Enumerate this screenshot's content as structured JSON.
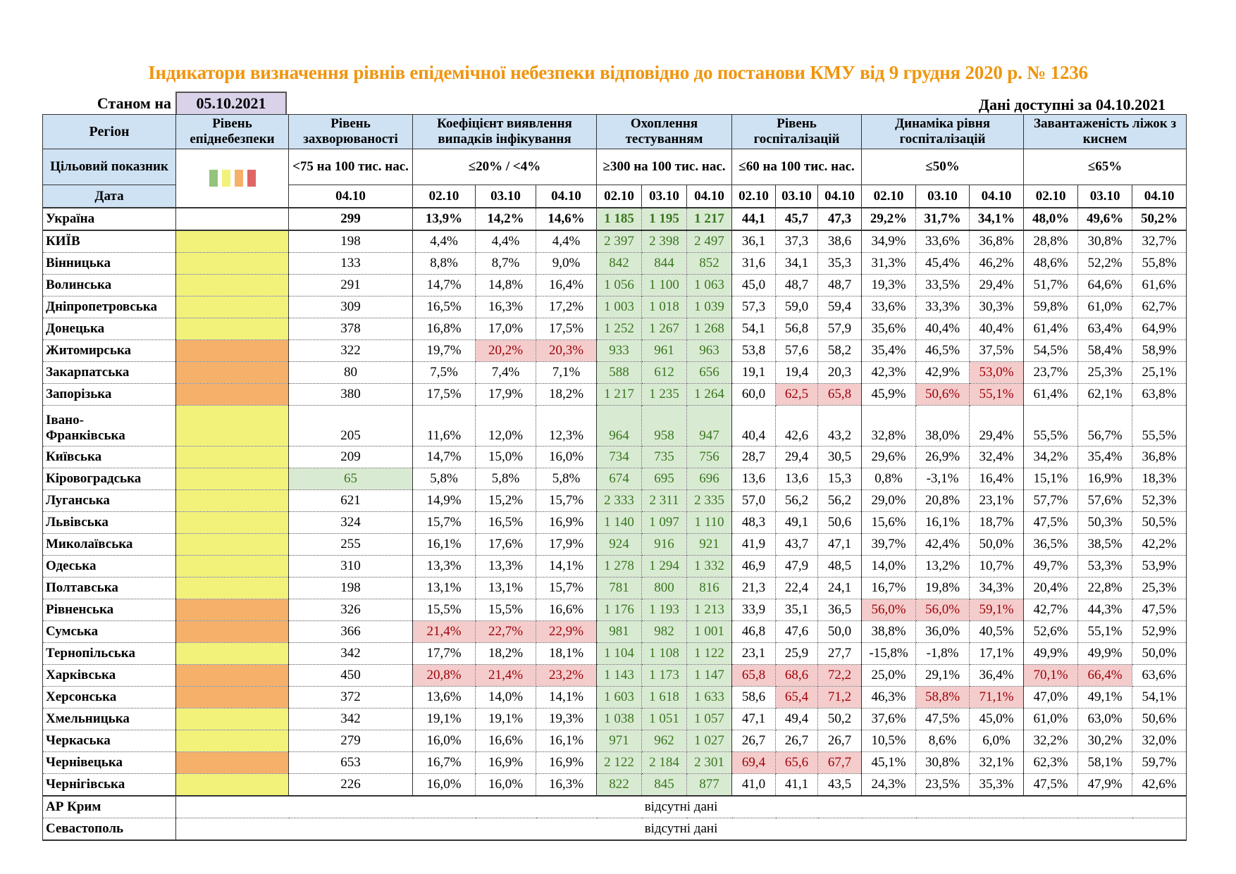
{
  "title": "Індикатори визначення рівнів епідемічної небезпеки відповідно до постанови КМУ від 9 грудня 2020 р. № 1236",
  "as_of_label": "Станом на",
  "as_of_date": "05.10.2021",
  "available_label": "Дані доступні за  04.10.2021",
  "colors": {
    "green": "#93c47d",
    "yellow": "#f2f27a",
    "orange": "#f5b06a",
    "red": "#e06666",
    "title": "#f0950e",
    "header": "#cfe2f3",
    "ok_bg": "#d9ead3",
    "bad_bg": "#f4cccc"
  },
  "headers": {
    "region": "Регіон",
    "level": "Рівень епіднебезпеки",
    "rate": "Рівень захворюваності",
    "coef": "Коефіцієнт виявлення випадків інфікування",
    "test": "Охоплення тестуванням",
    "hosp": "Рівень госпіталізацій",
    "dyn": "Динаміка рівня госпіталізацій",
    "beds": "Завантаженість ліжок з киснем"
  },
  "targets": {
    "label": "Цільовий показник",
    "legend": [
      "green",
      "yellow",
      "orange",
      "red"
    ],
    "rate": "<75 на 100 тис. нас.",
    "coef": "≤20% / <4%",
    "test": "≥300 на 100 тис. нас.",
    "hosp": "≤60 на 100 тис. нас.",
    "dyn": "≤50%",
    "beds": "≤65%"
  },
  "dates": {
    "label": "Дата",
    "rate": "04.10",
    "group": [
      "02.10",
      "03.10",
      "04.10"
    ]
  },
  "rows": [
    {
      "name": "Україна",
      "level": "",
      "rate": "299",
      "coef": [
        "13,9%",
        "14,2%",
        "14,6%"
      ],
      "test": [
        "1 185",
        "1 195",
        "1 217"
      ],
      "hosp": [
        "44,1",
        "45,7",
        "47,3"
      ],
      "dyn": [
        "29,2%",
        "31,7%",
        "34,1%"
      ],
      "beds": [
        "48,0%",
        "49,6%",
        "50,2%"
      ]
    },
    {
      "name": "КИЇВ",
      "level": "yellow",
      "rate": "198",
      "coef": [
        "4,4%",
        "4,4%",
        "4,4%"
      ],
      "test": [
        "2 397",
        "2 398",
        "2 497"
      ],
      "hosp": [
        "36,1",
        "37,3",
        "38,6"
      ],
      "dyn": [
        "34,9%",
        "33,6%",
        "36,8%"
      ],
      "beds": [
        "28,8%",
        "30,8%",
        "32,7%"
      ]
    },
    {
      "name": "Вінницька",
      "level": "yellow",
      "rate": "133",
      "coef": [
        "8,8%",
        "8,7%",
        "9,0%"
      ],
      "test": [
        "842",
        "844",
        "852"
      ],
      "hosp": [
        "31,6",
        "34,1",
        "35,3"
      ],
      "dyn": [
        "31,3%",
        "45,4%",
        "46,2%"
      ],
      "beds": [
        "48,6%",
        "52,2%",
        "55,8%"
      ]
    },
    {
      "name": "Волинська",
      "level": "yellow",
      "rate": "291",
      "coef": [
        "14,7%",
        "14,8%",
        "16,4%"
      ],
      "test": [
        "1 056",
        "1 100",
        "1 063"
      ],
      "hosp": [
        "45,0",
        "48,7",
        "48,7"
      ],
      "dyn": [
        "19,3%",
        "33,5%",
        "29,4%"
      ],
      "beds": [
        "51,7%",
        "64,6%",
        "61,6%"
      ]
    },
    {
      "name": "Дніпропетровська",
      "level": "yellow",
      "rate": "309",
      "coef": [
        "16,5%",
        "16,3%",
        "17,2%"
      ],
      "test": [
        "1 003",
        "1 018",
        "1 039"
      ],
      "hosp": [
        "57,3",
        "59,0",
        "59,4"
      ],
      "dyn": [
        "33,6%",
        "33,3%",
        "30,3%"
      ],
      "beds": [
        "59,8%",
        "61,0%",
        "62,7%"
      ]
    },
    {
      "name": "Донецька",
      "level": "yellow",
      "rate": "378",
      "coef": [
        "16,8%",
        "17,0%",
        "17,5%"
      ],
      "test": [
        "1 252",
        "1 267",
        "1 268"
      ],
      "hosp": [
        "54,1",
        "56,8",
        "57,9"
      ],
      "dyn": [
        "35,6%",
        "40,4%",
        "40,4%"
      ],
      "beds": [
        "61,4%",
        "63,4%",
        "64,9%"
      ]
    },
    {
      "name": "Житомирська",
      "level": "orange",
      "rate": "322",
      "coef": [
        "19,7%",
        "20,2%",
        "20,3%"
      ],
      "test": [
        "933",
        "961",
        "963"
      ],
      "hosp": [
        "53,8",
        "57,6",
        "58,2"
      ],
      "dyn": [
        "35,4%",
        "46,5%",
        "37,5%"
      ],
      "beds": [
        "54,5%",
        "58,4%",
        "58,9%"
      ]
    },
    {
      "name": "Закарпатська",
      "level": "orange",
      "rate": "80",
      "coef": [
        "7,5%",
        "7,4%",
        "7,1%"
      ],
      "test": [
        "588",
        "612",
        "656"
      ],
      "hosp": [
        "19,1",
        "19,4",
        "20,3"
      ],
      "dyn": [
        "42,3%",
        "42,9%",
        "53,0%"
      ],
      "beds": [
        "23,7%",
        "25,3%",
        "25,1%"
      ]
    },
    {
      "name": "Запорізька",
      "level": "orange",
      "rate": "380",
      "coef": [
        "17,5%",
        "17,9%",
        "18,2%"
      ],
      "test": [
        "1 217",
        "1 235",
        "1 264"
      ],
      "hosp": [
        "60,0",
        "62,5",
        "65,8"
      ],
      "dyn": [
        "45,9%",
        "50,6%",
        "55,1%"
      ],
      "beds": [
        "61,4%",
        "62,1%",
        "63,8%"
      ]
    },
    {
      "name": "Івано-Франківська",
      "level": "yellow",
      "rate": "205",
      "coef": [
        "11,6%",
        "12,0%",
        "12,3%"
      ],
      "test": [
        "964",
        "958",
        "947"
      ],
      "hosp": [
        "40,4",
        "42,6",
        "43,2"
      ],
      "dyn": [
        "32,8%",
        "38,0%",
        "29,4%"
      ],
      "beds": [
        "55,5%",
        "56,7%",
        "55,5%"
      ]
    },
    {
      "name": "Київська",
      "level": "yellow",
      "rate": "209",
      "coef": [
        "14,7%",
        "15,0%",
        "16,0%"
      ],
      "test": [
        "734",
        "735",
        "756"
      ],
      "hosp": [
        "28,7",
        "29,4",
        "30,5"
      ],
      "dyn": [
        "29,6%",
        "26,9%",
        "32,4%"
      ],
      "beds": [
        "34,2%",
        "35,4%",
        "36,8%"
      ]
    },
    {
      "name": "Кіровоградська",
      "level": "yellow",
      "rate": "65",
      "coef": [
        "5,8%",
        "5,8%",
        "5,8%"
      ],
      "test": [
        "674",
        "695",
        "696"
      ],
      "hosp": [
        "13,6",
        "13,6",
        "15,3"
      ],
      "dyn": [
        "0,8%",
        "-3,1%",
        "16,4%"
      ],
      "beds": [
        "15,1%",
        "16,9%",
        "18,3%"
      ]
    },
    {
      "name": "Луганська",
      "level": "yellow",
      "rate": "621",
      "coef": [
        "14,9%",
        "15,2%",
        "15,7%"
      ],
      "test": [
        "2 333",
        "2 311",
        "2 335"
      ],
      "hosp": [
        "57,0",
        "56,2",
        "56,2"
      ],
      "dyn": [
        "29,0%",
        "20,8%",
        "23,1%"
      ],
      "beds": [
        "57,7%",
        "57,6%",
        "52,3%"
      ]
    },
    {
      "name": "Львівська",
      "level": "yellow",
      "rate": "324",
      "coef": [
        "15,7%",
        "16,5%",
        "16,9%"
      ],
      "test": [
        "1 140",
        "1 097",
        "1 110"
      ],
      "hosp": [
        "48,3",
        "49,1",
        "50,6"
      ],
      "dyn": [
        "15,6%",
        "16,1%",
        "18,7%"
      ],
      "beds": [
        "47,5%",
        "50,3%",
        "50,5%"
      ]
    },
    {
      "name": "Миколаївська",
      "level": "yellow",
      "rate": "255",
      "coef": [
        "16,1%",
        "17,6%",
        "17,9%"
      ],
      "test": [
        "924",
        "916",
        "921"
      ],
      "hosp": [
        "41,9",
        "43,7",
        "47,1"
      ],
      "dyn": [
        "39,7%",
        "42,4%",
        "50,0%"
      ],
      "beds": [
        "36,5%",
        "38,5%",
        "42,2%"
      ]
    },
    {
      "name": "Одеська",
      "level": "yellow",
      "rate": "310",
      "coef": [
        "13,3%",
        "13,3%",
        "14,1%"
      ],
      "test": [
        "1 278",
        "1 294",
        "1 332"
      ],
      "hosp": [
        "46,9",
        "47,9",
        "48,5"
      ],
      "dyn": [
        "14,0%",
        "13,2%",
        "10,7%"
      ],
      "beds": [
        "49,7%",
        "53,3%",
        "53,9%"
      ]
    },
    {
      "name": "Полтавська",
      "level": "yellow",
      "rate": "198",
      "coef": [
        "13,1%",
        "13,1%",
        "15,7%"
      ],
      "test": [
        "781",
        "800",
        "816"
      ],
      "hosp": [
        "21,3",
        "22,4",
        "24,1"
      ],
      "dyn": [
        "16,7%",
        "19,8%",
        "34,3%"
      ],
      "beds": [
        "20,4%",
        "22,8%",
        "25,3%"
      ]
    },
    {
      "name": "Рівненська",
      "level": "orange",
      "rate": "326",
      "coef": [
        "15,5%",
        "15,5%",
        "16,6%"
      ],
      "test": [
        "1 176",
        "1 193",
        "1 213"
      ],
      "hosp": [
        "33,9",
        "35,1",
        "36,5"
      ],
      "dyn": [
        "56,0%",
        "56,0%",
        "59,1%"
      ],
      "beds": [
        "42,7%",
        "44,3%",
        "47,5%"
      ]
    },
    {
      "name": "Сумська",
      "level": "orange",
      "rate": "366",
      "coef": [
        "21,4%",
        "22,7%",
        "22,9%"
      ],
      "test": [
        "981",
        "982",
        "1 001"
      ],
      "hosp": [
        "46,8",
        "47,6",
        "50,0"
      ],
      "dyn": [
        "38,8%",
        "36,0%",
        "40,5%"
      ],
      "beds": [
        "52,6%",
        "55,1%",
        "52,9%"
      ]
    },
    {
      "name": "Тернопільська",
      "level": "yellow",
      "rate": "342",
      "coef": [
        "17,7%",
        "18,2%",
        "18,1%"
      ],
      "test": [
        "1 104",
        "1 108",
        "1 122"
      ],
      "hosp": [
        "23,1",
        "25,9",
        "27,7"
      ],
      "dyn": [
        "-15,8%",
        "-1,8%",
        "17,1%"
      ],
      "beds": [
        "49,9%",
        "49,9%",
        "50,0%"
      ]
    },
    {
      "name": "Харківська",
      "level": "orange",
      "rate": "450",
      "coef": [
        "20,8%",
        "21,4%",
        "23,2%"
      ],
      "test": [
        "1 143",
        "1 173",
        "1 147"
      ],
      "hosp": [
        "65,8",
        "68,6",
        "72,2"
      ],
      "dyn": [
        "25,0%",
        "29,1%",
        "36,4%"
      ],
      "beds": [
        "70,1%",
        "66,4%",
        "63,6%"
      ]
    },
    {
      "name": "Херсонська",
      "level": "orange",
      "rate": "372",
      "coef": [
        "13,6%",
        "14,0%",
        "14,1%"
      ],
      "test": [
        "1 603",
        "1 618",
        "1 633"
      ],
      "hosp": [
        "58,6",
        "65,4",
        "71,2"
      ],
      "dyn": [
        "46,3%",
        "58,8%",
        "71,1%"
      ],
      "beds": [
        "47,0%",
        "49,1%",
        "54,1%"
      ]
    },
    {
      "name": "Хмельницька",
      "level": "yellow",
      "rate": "342",
      "coef": [
        "19,1%",
        "19,1%",
        "19,3%"
      ],
      "test": [
        "1 038",
        "1 051",
        "1 057"
      ],
      "hosp": [
        "47,1",
        "49,4",
        "50,2"
      ],
      "dyn": [
        "37,6%",
        "47,5%",
        "45,0%"
      ],
      "beds": [
        "61,0%",
        "63,0%",
        "50,6%"
      ]
    },
    {
      "name": "Черкаська",
      "level": "yellow",
      "rate": "279",
      "coef": [
        "16,0%",
        "16,6%",
        "16,1%"
      ],
      "test": [
        "971",
        "962",
        "1 027"
      ],
      "hosp": [
        "26,7",
        "26,7",
        "26,7"
      ],
      "dyn": [
        "10,5%",
        "8,6%",
        "6,0%"
      ],
      "beds": [
        "32,2%",
        "30,2%",
        "32,0%"
      ]
    },
    {
      "name": "Чернівецька",
      "level": "orange",
      "rate": "653",
      "coef": [
        "16,7%",
        "16,9%",
        "16,9%"
      ],
      "test": [
        "2 122",
        "2 184",
        "2 301"
      ],
      "hosp": [
        "69,4",
        "65,6",
        "67,7"
      ],
      "dyn": [
        "45,1%",
        "30,8%",
        "32,1%"
      ],
      "beds": [
        "62,3%",
        "58,1%",
        "59,7%"
      ]
    },
    {
      "name": "Чернігівська",
      "level": "yellow",
      "rate": "226",
      "coef": [
        "16,0%",
        "16,0%",
        "16,3%"
      ],
      "test": [
        "822",
        "845",
        "877"
      ],
      "hosp": [
        "41,0",
        "41,1",
        "43,5"
      ],
      "dyn": [
        "24,3%",
        "23,5%",
        "35,3%"
      ],
      "beds": [
        "47,5%",
        "47,9%",
        "42,6%"
      ]
    }
  ],
  "no_data_rows": [
    {
      "name": "АР Крим",
      "text": "відсутні дані"
    },
    {
      "name": "Севастополь",
      "text": "відсутні дані"
    }
  ]
}
